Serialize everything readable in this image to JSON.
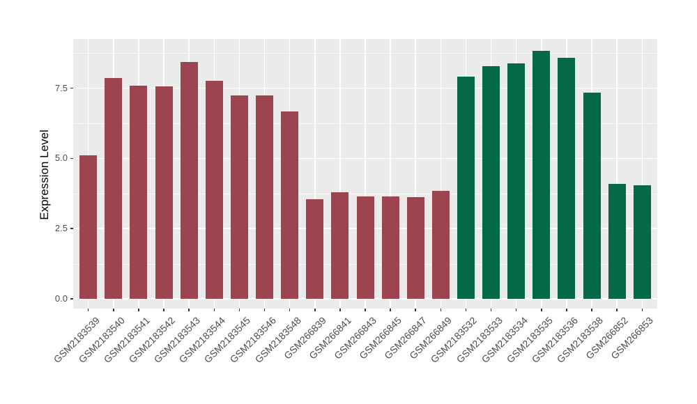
{
  "chart_data": {
    "type": "bar",
    "title": "",
    "xlabel": "",
    "ylabel": "Expression Level",
    "ylim": [
      0,
      9.26
    ],
    "yticks": [
      0.0,
      2.5,
      5.0,
      7.5
    ],
    "ytick_labels": [
      "0.0",
      "2.5",
      "5.0",
      "7.5"
    ],
    "minor_gridlines": [
      1.25,
      3.75,
      6.25,
      8.75
    ],
    "grid": "on",
    "legend_position": "none",
    "categories": [
      "GSM2183539",
      "GSM2183540",
      "GSM2183541",
      "GSM2183542",
      "GSM2183543",
      "GSM2183544",
      "GSM2183545",
      "GSM2183546",
      "GSM2183548",
      "GSM266839",
      "GSM266841",
      "GSM266843",
      "GSM266845",
      "GSM266847",
      "GSM266849",
      "GSM2183532",
      "GSM2183533",
      "GSM2183534",
      "GSM2183535",
      "GSM2183536",
      "GSM2183538",
      "GSM266852",
      "GSM266853"
    ],
    "bars": [
      {
        "label": "GSM2183539",
        "value": 5.1,
        "group": "red"
      },
      {
        "label": "GSM2183540",
        "value": 7.87,
        "group": "red"
      },
      {
        "label": "GSM2183541",
        "value": 7.58,
        "group": "red"
      },
      {
        "label": "GSM2183542",
        "value": 7.56,
        "group": "red"
      },
      {
        "label": "GSM2183543",
        "value": 8.43,
        "group": "red"
      },
      {
        "label": "GSM2183544",
        "value": 7.76,
        "group": "red"
      },
      {
        "label": "GSM2183545",
        "value": 7.23,
        "group": "red"
      },
      {
        "label": "GSM2183546",
        "value": 7.25,
        "group": "red"
      },
      {
        "label": "GSM2183548",
        "value": 6.66,
        "group": "red"
      },
      {
        "label": "GSM266839",
        "value": 3.55,
        "group": "red"
      },
      {
        "label": "GSM266841",
        "value": 3.8,
        "group": "red"
      },
      {
        "label": "GSM266843",
        "value": 3.65,
        "group": "red"
      },
      {
        "label": "GSM266845",
        "value": 3.65,
        "group": "red"
      },
      {
        "label": "GSM266847",
        "value": 3.61,
        "group": "red"
      },
      {
        "label": "GSM266849",
        "value": 3.85,
        "group": "red"
      },
      {
        "label": "GSM2183532",
        "value": 7.92,
        "group": "green"
      },
      {
        "label": "GSM2183533",
        "value": 8.27,
        "group": "green"
      },
      {
        "label": "GSM2183534",
        "value": 8.38,
        "group": "green"
      },
      {
        "label": "GSM2183535",
        "value": 8.82,
        "group": "green"
      },
      {
        "label": "GSM2183536",
        "value": 8.57,
        "group": "green"
      },
      {
        "label": "GSM2183538",
        "value": 7.35,
        "group": "green"
      },
      {
        "label": "GSM266852",
        "value": 4.09,
        "group": "green"
      },
      {
        "label": "GSM266853",
        "value": 4.04,
        "group": "green"
      }
    ],
    "colors": {
      "red": "#9C4450",
      "green": "#046947",
      "panel_background": "#EBEBEB",
      "gridline": "#FFFFFF",
      "tick_text": "#4D4D4D",
      "axis_title_text": "#000000"
    }
  }
}
